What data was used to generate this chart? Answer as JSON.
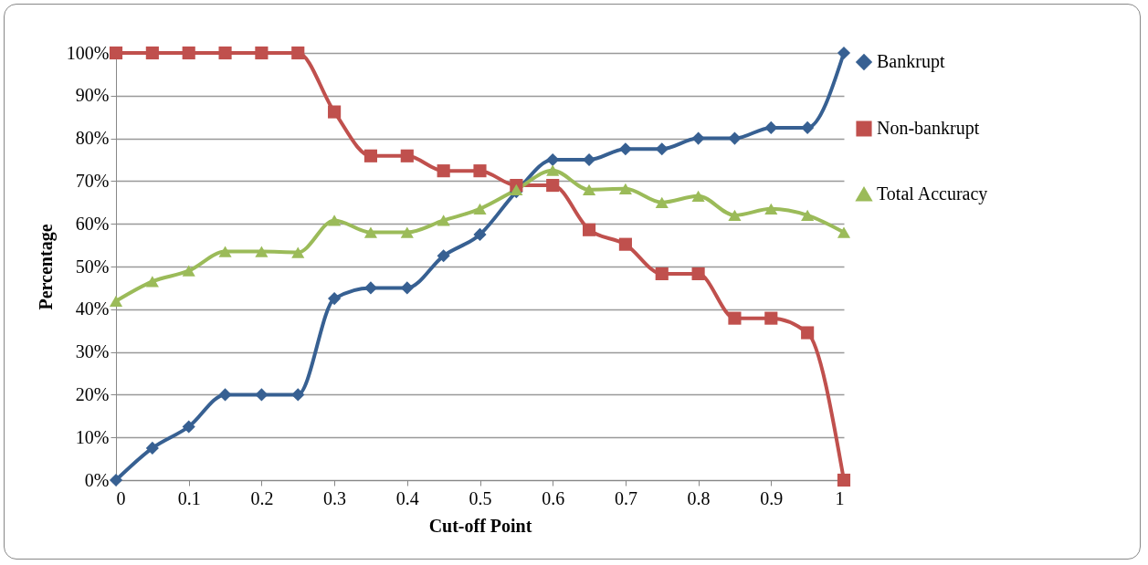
{
  "chart_data": {
    "type": "line",
    "xlabel": "Cut-off Point",
    "ylabel": "Percentage",
    "x": [
      0,
      0.05,
      0.1,
      0.15,
      0.2,
      0.25,
      0.3,
      0.35,
      0.4,
      0.45,
      0.5,
      0.55,
      0.6,
      0.65,
      0.7,
      0.75,
      0.8,
      0.85,
      0.9,
      0.95,
      1
    ],
    "series": [
      {
        "name": "Bankrupt",
        "color": "#376092",
        "marker": "diamond",
        "values": [
          0,
          7.5,
          12.5,
          20,
          20,
          20,
          42.5,
          45,
          45,
          52.5,
          57.5,
          67.5,
          75,
          75,
          77.5,
          77.5,
          80,
          80,
          82.5,
          82.5,
          100
        ]
      },
      {
        "name": "Non-bankrupt",
        "color": "#c0504d",
        "marker": "square",
        "values": [
          100,
          100,
          100,
          100,
          100,
          100,
          86.2,
          75.9,
          75.9,
          72.4,
          72.4,
          69,
          69,
          58.6,
          55.2,
          48.3,
          48.3,
          37.9,
          37.9,
          34.5,
          0
        ]
      },
      {
        "name": "Total Accuracy",
        "color": "#9bbb59",
        "marker": "triangle",
        "values": [
          41.9,
          46.5,
          49,
          53.5,
          53.5,
          53.3,
          60.8,
          58,
          58,
          60.8,
          63.5,
          68,
          72.5,
          68,
          68.2,
          65,
          66.5,
          62,
          63.5,
          62,
          58
        ]
      }
    ],
    "xlim": [
      0,
      1
    ],
    "xticks": [
      0,
      0.1,
      0.2,
      0.3,
      0.4,
      0.5,
      0.6,
      0.7,
      0.8,
      0.9,
      1
    ],
    "ylim": [
      0,
      100
    ],
    "yticks": [
      {
        "value": 0,
        "label": "0%"
      },
      {
        "value": 10,
        "label": "10%"
      },
      {
        "value": 20,
        "label": "20%"
      },
      {
        "value": 30,
        "label": "30%"
      },
      {
        "value": 40,
        "label": "40%"
      },
      {
        "value": 50,
        "label": "50%"
      },
      {
        "value": 60,
        "label": "60%"
      },
      {
        "value": 70,
        "label": "70%"
      },
      {
        "value": 80,
        "label": "80%"
      },
      {
        "value": 90,
        "label": "90%"
      },
      {
        "value": 100,
        "label": "100%"
      }
    ],
    "grid": "y",
    "legend": "right"
  }
}
